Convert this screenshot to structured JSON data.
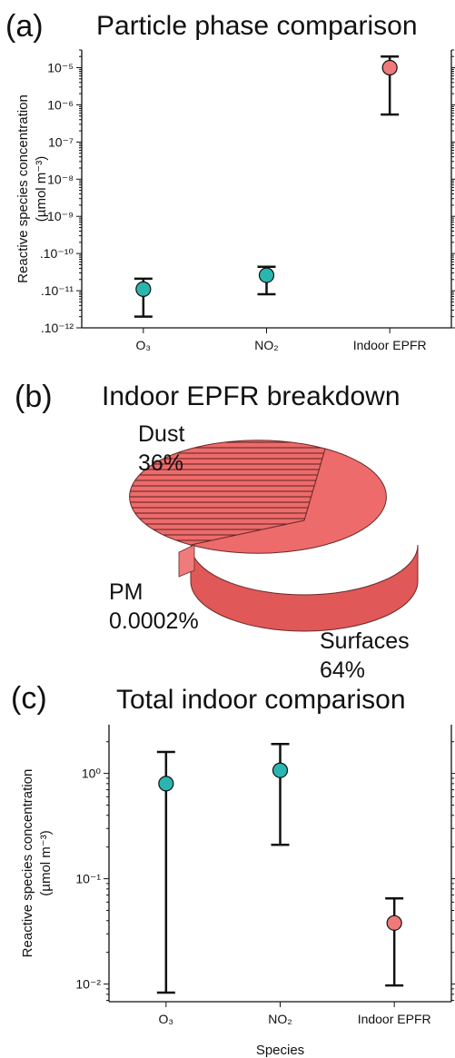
{
  "panels": {
    "a": {
      "letter": "(a)",
      "title": "Particle phase comparison"
    },
    "b": {
      "letter": "(b)",
      "title": "Indoor EPFR breakdown"
    },
    "c": {
      "letter": "(c)",
      "title": "Total indoor comparison"
    }
  },
  "colors": {
    "ozone_no2": "#2bb5b0",
    "epfr": "#ee7a7a",
    "pie_face": "#ee6b6b",
    "pie_side": "#e05858"
  },
  "chart_data": [
    {
      "type": "scatter",
      "title": "Particle phase comparison",
      "ylabel": "Reactive species concentration (µmol m⁻³)",
      "xlabel": "",
      "yscale": "log",
      "ylim": [
        1e-12,
        3e-05
      ],
      "yticks": [
        {
          "value": 1e-12,
          "label": ".10⁻¹²"
        },
        {
          "value": 1e-11,
          "label": ".10⁻¹¹"
        },
        {
          "value": 1e-10,
          "label": ".10⁻¹⁰"
        },
        {
          "value": 1e-09,
          "label": "10⁻⁹"
        },
        {
          "value": 1e-08,
          "label": "10⁻⁸"
        },
        {
          "value": 1e-07,
          "label": "10⁻⁷"
        },
        {
          "value": 1e-06,
          "label": "10⁻⁶"
        },
        {
          "value": 1e-05,
          "label": "10⁻⁵"
        }
      ],
      "categories": [
        "O₃",
        "NO₂",
        "Indoor EPFR"
      ],
      "points": [
        {
          "category": "O₃",
          "y": 1.1e-11,
          "low": 2e-12,
          "high": 2.1e-11,
          "color": "#2bb5b0"
        },
        {
          "category": "NO₂",
          "y": 2.6e-11,
          "low": 8e-12,
          "high": 4.4e-11,
          "color": "#2bb5b0"
        },
        {
          "category": "Indoor EPFR",
          "y": 1e-05,
          "low": 5.5e-07,
          "high": 2e-05,
          "color": "#ee7a7a"
        }
      ]
    },
    {
      "type": "pie",
      "title": "Indoor EPFR breakdown",
      "slices": [
        {
          "label": "Dust",
          "percent_label": "36%",
          "value": 36,
          "pattern": "hatched"
        },
        {
          "label": "PM",
          "percent_label": "0.0002%",
          "value": 0.0002,
          "pattern": "solid"
        },
        {
          "label": "Surfaces",
          "percent_label": "64%",
          "value": 64,
          "pattern": "solid"
        }
      ]
    },
    {
      "type": "scatter",
      "title": "Total indoor comparison",
      "ylabel": "Reactive species concentration (µmol m⁻³)",
      "xlabel": "Species",
      "yscale": "log",
      "ylim": [
        0.0068,
        2.9
      ],
      "yticks": [
        {
          "value": 0.01,
          "label": "10⁻²"
        },
        {
          "value": 0.1,
          "label": "10⁻¹"
        },
        {
          "value": 1,
          "label": "10⁰"
        }
      ],
      "categories": [
        "O₃",
        "NO₂",
        "Indoor EPFR"
      ],
      "points": [
        {
          "category": "O₃",
          "y": 0.8,
          "low": 0.0083,
          "high": 1.6,
          "color": "#2bb5b0"
        },
        {
          "category": "NO₂",
          "y": 1.07,
          "low": 0.21,
          "high": 1.9,
          "color": "#2bb5b0"
        },
        {
          "category": "Indoor EPFR",
          "y": 0.038,
          "low": 0.0097,
          "high": 0.065,
          "color": "#ee7a7a"
        }
      ]
    }
  ]
}
